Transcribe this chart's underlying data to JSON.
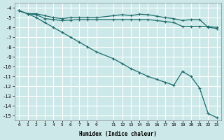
{
  "xlabel": "Humidex (Indice chaleur)",
  "ylabel": "",
  "bg_color": "#cde8e8",
  "grid_color": "#ffffff",
  "line_color": "#1a6b6b",
  "xlim": [
    -0.5,
    23.5
  ],
  "ylim": [
    -15.5,
    -3.5
  ],
  "yticks": [
    -4,
    -5,
    -6,
    -7,
    -8,
    -9,
    -10,
    -11,
    -12,
    -13,
    -14,
    -15
  ],
  "xticks": [
    0,
    1,
    2,
    3,
    4,
    5,
    6,
    7,
    8,
    9,
    11,
    12,
    13,
    14,
    15,
    16,
    17,
    18,
    19,
    20,
    21,
    22,
    23
  ],
  "xtick_labels": [
    "0",
    "1",
    "2",
    "3",
    "4",
    "5",
    "6",
    "7",
    "8",
    "9",
    "11",
    "12",
    "13",
    "14",
    "15",
    "16",
    "17",
    "18",
    "19",
    "20",
    "21",
    "22",
    "23"
  ],
  "line1_x": [
    0,
    1,
    2,
    3,
    4,
    5,
    6,
    7,
    8,
    9,
    11,
    12,
    13,
    14,
    15,
    16,
    17,
    18,
    19,
    20,
    21,
    22,
    23
  ],
  "line1_y": [
    -4.3,
    -4.6,
    -4.6,
    -4.8,
    -5.0,
    -5.1,
    -5.0,
    -5.0,
    -5.0,
    -5.0,
    -4.8,
    -4.7,
    -4.8,
    -4.65,
    -4.7,
    -4.85,
    -5.0,
    -5.1,
    -5.3,
    -5.2,
    -5.2,
    -6.0,
    -6.1
  ],
  "line2_x": [
    0,
    1,
    2,
    3,
    4,
    5,
    6,
    7,
    8,
    9,
    11,
    12,
    13,
    14,
    15,
    16,
    17,
    18,
    19,
    20,
    21,
    22,
    23
  ],
  "line2_y": [
    -4.3,
    -4.6,
    -4.7,
    -5.1,
    -5.2,
    -5.3,
    -5.25,
    -5.2,
    -5.2,
    -5.2,
    -5.2,
    -5.2,
    -5.2,
    -5.2,
    -5.2,
    -5.3,
    -5.4,
    -5.5,
    -5.9,
    -5.9,
    -5.9,
    -5.9,
    -6.0
  ],
  "line3_x": [
    0,
    1,
    2,
    3,
    4,
    5,
    6,
    7,
    8,
    9,
    11,
    12,
    13,
    14,
    15,
    16,
    17,
    18,
    19,
    20,
    21,
    22,
    23
  ],
  "line3_y": [
    -4.3,
    -4.6,
    -5.0,
    -5.5,
    -6.0,
    -6.5,
    -7.0,
    -7.5,
    -8.0,
    -8.5,
    -9.2,
    -9.7,
    -10.2,
    -10.6,
    -11.0,
    -11.3,
    -11.6,
    -11.9,
    -10.5,
    -11.0,
    -12.2,
    -14.8,
    -15.2
  ]
}
